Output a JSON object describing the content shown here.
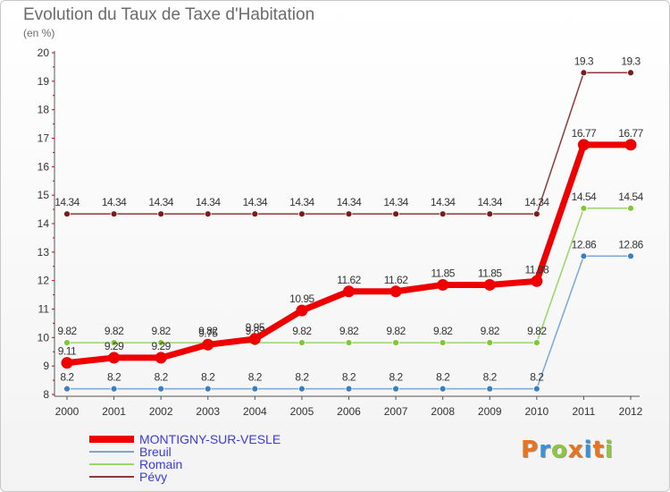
{
  "title": "Evolution du Taux de Taxe d'Habitation",
  "subtitle": "(en %)",
  "logo_text": "Proxiti",
  "logo_colors": [
    "#e8741e",
    "#3b93d6",
    "#8dc63f",
    "#e8741e",
    "#3b93d6",
    "#e8741e",
    "#8dc63f"
  ],
  "chart_data": {
    "type": "line",
    "title": "Evolution du Taux de Taxe d'Habitation",
    "ylabel": "(en %)",
    "xlabel": "",
    "categories": [
      "2000",
      "2001",
      "2002",
      "2003",
      "2004",
      "2005",
      "2006",
      "2007",
      "2008",
      "2009",
      "2010",
      "2011",
      "2012"
    ],
    "ylim": [
      8,
      20
    ],
    "yticks": [
      "8",
      "9",
      "10",
      "11",
      "12",
      "13",
      "14",
      "15",
      "16",
      "17",
      "18",
      "19",
      "20"
    ],
    "grid": false,
    "legend_position": "bottom-left",
    "series": [
      {
        "name": "Pévy",
        "color": "#7b1c1c",
        "line_color": "#8a3a3a",
        "values": [
          14.34,
          14.34,
          14.34,
          14.34,
          14.34,
          14.34,
          14.34,
          14.34,
          14.34,
          14.34,
          14.34,
          19.3,
          19.3
        ],
        "labels": [
          "14.34",
          "14.34",
          "14.34",
          "14.34",
          "14.34",
          "14.34",
          "14.34",
          "14.34",
          "14.34",
          "14.34",
          "14.34",
          "19.3",
          "19.3"
        ]
      },
      {
        "name": "Romain",
        "color": "#7fc832",
        "line_color": "#9bd46a",
        "values": [
          9.82,
          9.82,
          9.82,
          9.82,
          9.82,
          9.82,
          9.82,
          9.82,
          9.82,
          9.82,
          9.82,
          14.54,
          14.54
        ],
        "labels": [
          "9.82",
          "9.82",
          "9.82",
          "9.82",
          "9.82",
          "9.82",
          "9.82",
          "9.82",
          "9.82",
          "9.82",
          "9.82",
          "14.54",
          "14.54"
        ]
      },
      {
        "name": "Breuil",
        "color": "#3b7fc0",
        "line_color": "#79a8d6",
        "values": [
          8.2,
          8.2,
          8.2,
          8.2,
          8.2,
          8.2,
          8.2,
          8.2,
          8.2,
          8.2,
          8.2,
          12.86,
          12.86
        ],
        "labels": [
          "8.2",
          "8.2",
          "8.2",
          "8.2",
          "8.2",
          "8.2",
          "8.2",
          "8.2",
          "8.2",
          "8.2",
          "8.2",
          "12.86",
          "12.86"
        ]
      },
      {
        "name": "MONTIGNY-SUR-VESLE",
        "color": "#ee0000",
        "line_color": "#ee0000",
        "values": [
          9.11,
          9.29,
          9.29,
          9.75,
          9.95,
          10.95,
          11.62,
          11.62,
          11.85,
          11.85,
          11.98,
          16.77,
          16.77
        ],
        "labels": [
          "9.11",
          "9.29",
          "9.29",
          "9.75",
          "9.95",
          "10.95",
          "11.62",
          "11.62",
          "11.85",
          "11.85",
          "11.98",
          "16.77",
          "16.77"
        ]
      }
    ],
    "legend": [
      {
        "name": "MONTIGNY-SUR-VESLE",
        "color": "#ee0000",
        "text_color": "#3a3adf"
      },
      {
        "name": "Breuil",
        "color": "#79a8d6",
        "text_color": "#3a3adf"
      },
      {
        "name": "Romain",
        "color": "#9bd46a",
        "text_color": "#3a3adf"
      },
      {
        "name": "Pévy",
        "color": "#8a3a3a",
        "text_color": "#3a3adf"
      }
    ]
  }
}
